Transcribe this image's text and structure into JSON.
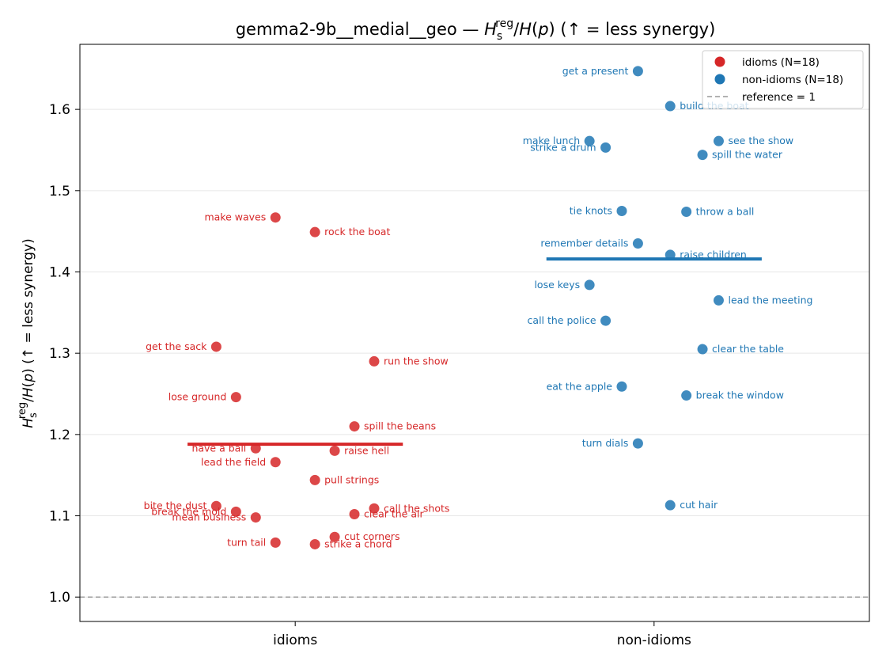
{
  "chart_data": {
    "type": "scatter",
    "title_main": "gemma2-9b__medial__geo — ",
    "title_tail": "  (↑ = less synergy)",
    "ylabel_tail": "  (↑ = less synergy)",
    "categories": [
      "idioms",
      "non-idioms"
    ],
    "ylim": [
      0.97,
      1.68
    ],
    "yticks": [
      1.0,
      1.1,
      1.2,
      1.3,
      1.4,
      1.5,
      1.6
    ],
    "ytick_labels": [
      "1.0",
      "1.1",
      "1.2",
      "1.3",
      "1.4",
      "1.5",
      "1.6"
    ],
    "reference_line": 1.0,
    "grid": "horizontal",
    "legend_position": "top-right",
    "legend": {
      "idioms": "idioms (N=18)",
      "non_idioms": "non-idioms (N=18)",
      "reference": "reference = 1"
    },
    "colors": {
      "idioms": "#d62728",
      "non_idioms": "#1f77b4",
      "reference": "#999999"
    },
    "series": [
      {
        "name": "idioms (N=18)",
        "category": "idioms",
        "mean": 1.188,
        "points": [
          {
            "label": "make waves",
            "y": 1.467,
            "offset": -0.055,
            "side": "left"
          },
          {
            "label": "rock the boat",
            "y": 1.449,
            "offset": 0.055,
            "side": "right"
          },
          {
            "label": "get the sack",
            "y": 1.308,
            "offset": -0.22,
            "side": "left"
          },
          {
            "label": "run the show",
            "y": 1.29,
            "offset": 0.22,
            "side": "right"
          },
          {
            "label": "lose ground",
            "y": 1.246,
            "offset": -0.165,
            "side": "left"
          },
          {
            "label": "spill the beans",
            "y": 1.21,
            "offset": 0.165,
            "side": "right"
          },
          {
            "label": "have a ball",
            "y": 1.183,
            "offset": -0.11,
            "side": "left"
          },
          {
            "label": "raise hell",
            "y": 1.18,
            "offset": 0.11,
            "side": "right"
          },
          {
            "label": "lead the field",
            "y": 1.166,
            "offset": -0.055,
            "side": "left"
          },
          {
            "label": "pull strings",
            "y": 1.144,
            "offset": 0.055,
            "side": "right"
          },
          {
            "label": "bite the dust",
            "y": 1.112,
            "offset": -0.22,
            "side": "left"
          },
          {
            "label": "call the shots",
            "y": 1.109,
            "offset": 0.22,
            "side": "right"
          },
          {
            "label": "break the mold",
            "y": 1.105,
            "offset": -0.165,
            "side": "left"
          },
          {
            "label": "clear the air",
            "y": 1.102,
            "offset": 0.165,
            "side": "right"
          },
          {
            "label": "mean business",
            "y": 1.098,
            "offset": -0.11,
            "side": "left"
          },
          {
            "label": "cut corners",
            "y": 1.074,
            "offset": 0.11,
            "side": "right"
          },
          {
            "label": "turn tail",
            "y": 1.067,
            "offset": -0.055,
            "side": "left"
          },
          {
            "label": "strike a chord",
            "y": 1.065,
            "offset": 0.055,
            "side": "right"
          }
        ]
      },
      {
        "name": "non-idioms (N=18)",
        "category": "non-idioms",
        "mean": 1.416,
        "points": [
          {
            "label": "get a present",
            "y": 1.647,
            "offset": -0.045,
            "side": "left"
          },
          {
            "label": "build the boat",
            "y": 1.604,
            "offset": 0.045,
            "side": "right"
          },
          {
            "label": "make lunch",
            "y": 1.561,
            "offset": -0.18,
            "side": "left"
          },
          {
            "label": "see the show",
            "y": 1.561,
            "offset": 0.18,
            "side": "right"
          },
          {
            "label": "strike a drum",
            "y": 1.553,
            "offset": -0.135,
            "side": "left"
          },
          {
            "label": "spill the water",
            "y": 1.544,
            "offset": 0.135,
            "side": "right"
          },
          {
            "label": "tie knots",
            "y": 1.475,
            "offset": -0.09,
            "side": "left"
          },
          {
            "label": "throw a ball",
            "y": 1.474,
            "offset": 0.09,
            "side": "right"
          },
          {
            "label": "remember details",
            "y": 1.435,
            "offset": -0.045,
            "side": "left"
          },
          {
            "label": "raise children",
            "y": 1.421,
            "offset": 0.045,
            "side": "right"
          },
          {
            "label": "lose keys",
            "y": 1.384,
            "offset": -0.18,
            "side": "left"
          },
          {
            "label": "lead the meeting",
            "y": 1.365,
            "offset": 0.18,
            "side": "right"
          },
          {
            "label": "call the police",
            "y": 1.34,
            "offset": -0.135,
            "side": "left"
          },
          {
            "label": "clear the table",
            "y": 1.305,
            "offset": 0.135,
            "side": "right"
          },
          {
            "label": "eat the apple",
            "y": 1.259,
            "offset": -0.09,
            "side": "left"
          },
          {
            "label": "break the window",
            "y": 1.248,
            "offset": 0.09,
            "side": "right"
          },
          {
            "label": "turn dials",
            "y": 1.189,
            "offset": -0.045,
            "side": "left"
          },
          {
            "label": "cut hair",
            "y": 1.113,
            "offset": 0.045,
            "side": "right"
          }
        ]
      }
    ]
  }
}
